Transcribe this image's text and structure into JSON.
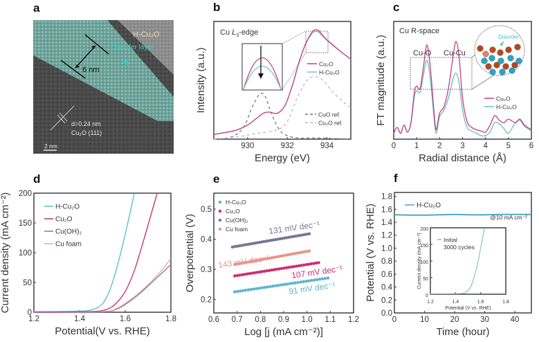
{
  "figure": {
    "panels": [
      "a",
      "b",
      "c",
      "d",
      "e",
      "f"
    ]
  },
  "panel_a": {
    "label": "a",
    "title": "H-Cu₂O",
    "layer_label": "Disorder layer",
    "thickness_label": "6 nm",
    "lattice_label": "d=0.24 nm",
    "plane_label": "Cu₂O (111)",
    "scalebar_label": "2 nm",
    "colors": {
      "layer": "#5fb3a8",
      "title": "#e9d9a0",
      "layer_text": "#3cc9c0"
    }
  },
  "chart_data": [
    {
      "id": "b",
      "type": "line",
      "panel_label": "b",
      "title": "Cu L3-edge",
      "title_parts": [
        "Cu ",
        "L",
        "3",
        "-edge"
      ],
      "xlabel": "Energy (eV)",
      "ylabel": "Intensity (a.u.)",
      "xlim": [
        928.3,
        935.2
      ],
      "ylim": [
        0,
        1.0
      ],
      "xticks": [
        930,
        932,
        934
      ],
      "series": [
        {
          "name": "Cu₂O",
          "color": "#c2417a",
          "style": "solid",
          "x": [
            928.3,
            929.0,
            929.5,
            930.0,
            930.4,
            930.8,
            931.1,
            931.5,
            931.9,
            932.3,
            932.6,
            932.9,
            933.1,
            933.3,
            933.45,
            933.6,
            933.9,
            934.3,
            934.8,
            935.2
          ],
          "y": [
            0.04,
            0.06,
            0.08,
            0.12,
            0.17,
            0.22,
            0.23,
            0.22,
            0.29,
            0.48,
            0.66,
            0.8,
            0.87,
            0.92,
            0.93,
            0.92,
            0.86,
            0.8,
            0.73,
            0.68
          ]
        },
        {
          "name": "H-Cu₂O",
          "color": "#7fbfc6",
          "style": "solid",
          "x": [
            928.3,
            929.0,
            929.5,
            930.0,
            930.4,
            930.8,
            931.1,
            931.5,
            931.9,
            932.3,
            932.6,
            932.9,
            933.1,
            933.3,
            933.45,
            933.6,
            933.9,
            934.3,
            934.8,
            935.2
          ],
          "y": [
            0.04,
            0.06,
            0.08,
            0.12,
            0.17,
            0.22,
            0.23,
            0.22,
            0.29,
            0.48,
            0.66,
            0.8,
            0.86,
            0.905,
            0.915,
            0.905,
            0.855,
            0.795,
            0.73,
            0.68
          ]
        },
        {
          "name": "CuO ref.",
          "color": "#777777",
          "style": "dashed",
          "x": [
            928.3,
            929.2,
            929.8,
            930.2,
            930.5,
            930.7,
            930.9,
            931.2,
            931.6,
            932.0,
            932.6,
            933.5,
            935.2
          ],
          "y": [
            0.0,
            0.02,
            0.1,
            0.26,
            0.36,
            0.39,
            0.36,
            0.22,
            0.08,
            0.03,
            0.01,
            0.01,
            0.0
          ]
        },
        {
          "name": "Cu₂O ref.",
          "color": "#bbbbbb",
          "style": "dashed",
          "x": [
            928.3,
            929.5,
            930.5,
            931.5,
            932.0,
            932.5,
            933.0,
            933.4,
            933.8,
            934.3,
            934.8,
            935.2
          ],
          "y": [
            0.0,
            0.02,
            0.05,
            0.08,
            0.15,
            0.35,
            0.5,
            0.53,
            0.5,
            0.4,
            0.32,
            0.27
          ]
        }
      ],
      "inset": {
        "description": "zoom on peak",
        "arrow": "down"
      },
      "legend_position": "right"
    },
    {
      "id": "c",
      "type": "line",
      "panel_label": "c",
      "title": "Cu R-space",
      "xlabel": "Radial distance (Å)",
      "ylabel": "FT magnitude (a.u.)",
      "xlim": [
        0,
        6
      ],
      "ylim": [
        0,
        1.0
      ],
      "xticks": [
        0,
        1,
        2,
        3,
        4,
        5,
        6
      ],
      "annotations": [
        "Cu-O",
        "Cu-Cu",
        "Disorder"
      ],
      "series": [
        {
          "name": "Cu₂O",
          "color": "#c2417a",
          "x": [
            0,
            0.15,
            0.3,
            0.45,
            0.6,
            0.75,
            0.9,
            1.0,
            1.15,
            1.3,
            1.45,
            1.6,
            1.75,
            1.85,
            2.0,
            2.2,
            2.4,
            2.6,
            2.72,
            2.85,
            3.0,
            3.2,
            3.4,
            3.6,
            3.8,
            4.0,
            4.2,
            4.4,
            4.6,
            4.8,
            5.0,
            5.3,
            5.5,
            5.7,
            6.0
          ],
          "y": [
            0.05,
            0.1,
            0.05,
            0.12,
            0.06,
            0.14,
            0.4,
            0.45,
            0.43,
            0.62,
            0.8,
            0.6,
            0.25,
            0.08,
            0.22,
            0.28,
            0.45,
            0.72,
            0.83,
            0.7,
            0.35,
            0.15,
            0.1,
            0.08,
            0.07,
            0.06,
            0.12,
            0.2,
            0.16,
            0.14,
            0.17,
            0.14,
            0.17,
            0.12,
            0.08
          ]
        },
        {
          "name": "H-Cu₂O",
          "color": "#6fb7c4",
          "x": [
            0,
            0.15,
            0.3,
            0.45,
            0.6,
            0.75,
            0.9,
            1.0,
            1.15,
            1.3,
            1.45,
            1.6,
            1.75,
            1.85,
            2.0,
            2.2,
            2.4,
            2.6,
            2.72,
            2.85,
            3.0,
            3.2,
            3.4,
            3.6,
            3.8,
            4.0,
            4.2,
            4.4,
            4.6,
            4.8,
            5.0,
            5.3,
            5.5,
            5.7,
            6.0
          ],
          "y": [
            0.05,
            0.1,
            0.05,
            0.12,
            0.06,
            0.13,
            0.36,
            0.41,
            0.4,
            0.55,
            0.67,
            0.5,
            0.2,
            0.05,
            0.19,
            0.25,
            0.36,
            0.52,
            0.56,
            0.48,
            0.25,
            0.1,
            0.07,
            0.05,
            0.03,
            0.03,
            0.06,
            0.14,
            0.13,
            0.09,
            0.05,
            0.14,
            0.16,
            0.11,
            0.07
          ]
        }
      ],
      "legend_position": "right"
    },
    {
      "id": "d",
      "type": "line",
      "panel_label": "d",
      "xlabel": "Potential(V vs. RHE)",
      "ylabel": "Current density (mA cm⁻²)",
      "xlim": [
        1.2,
        1.8
      ],
      "ylim": [
        0,
        200
      ],
      "xticks": [
        1.2,
        1.4,
        1.6,
        1.8
      ],
      "yticks": [
        0,
        50,
        100,
        150,
        200
      ],
      "series": [
        {
          "name": "H-Cu₂O",
          "color": "#4fc0b8",
          "x": [
            1.2,
            1.4,
            1.46,
            1.5,
            1.53,
            1.56,
            1.59,
            1.62,
            1.64
          ],
          "y": [
            1,
            2,
            5,
            14,
            35,
            70,
            115,
            165,
            200
          ]
        },
        {
          "name": "Cu₂O",
          "color": "#c8286a",
          "x": [
            1.2,
            1.45,
            1.52,
            1.56,
            1.6,
            1.64,
            1.68,
            1.71,
            1.74
          ],
          "y": [
            0,
            1,
            5,
            15,
            35,
            70,
            120,
            160,
            200
          ]
        },
        {
          "name": "Cu(OH)₂",
          "color": "#8a7a80",
          "x": [
            1.2,
            1.5,
            1.56,
            1.6,
            1.65,
            1.7,
            1.75,
            1.8
          ],
          "y": [
            0,
            1,
            5,
            13,
            27,
            44,
            62,
            80
          ]
        },
        {
          "name": "Cu foam",
          "color": "#e2a2b0",
          "x": [
            1.2,
            1.5,
            1.56,
            1.6,
            1.65,
            1.7,
            1.75,
            1.8
          ],
          "y": [
            0,
            1,
            6,
            15,
            29,
            46,
            66,
            90
          ]
        }
      ],
      "legend_position": "top-left"
    },
    {
      "id": "e",
      "type": "scatter",
      "panel_label": "e",
      "xlabel": "Log [j (mA cm⁻²)]",
      "ylabel": "Overpotential (V)",
      "xlim": [
        0.6,
        1.2
      ],
      "ylim": [
        0.155,
        0.553
      ],
      "xticks": [
        0.6,
        0.7,
        0.8,
        0.9,
        1.0,
        1.1,
        1.2
      ],
      "yticks": [
        0.2,
        0.3,
        0.4,
        0.5
      ],
      "series": [
        {
          "name": "H-Cu₂O",
          "color": "#5ab4cf",
          "x_start": 0.69,
          "x_end": 1.09,
          "y_start": 0.225,
          "y_end": 0.271,
          "tafel": "91 mV dec⁻¹"
        },
        {
          "name": "Cu₂O",
          "color": "#d12a6f",
          "x_start": 0.69,
          "x_end": 1.05,
          "y_start": 0.278,
          "y_end": 0.322,
          "tafel": "107 mV dec⁻¹"
        },
        {
          "name": "Cu(OH)₂",
          "color": "#7a7396",
          "x_start": 0.68,
          "x_end": 1.01,
          "y_start": 0.374,
          "y_end": 0.418,
          "tafel": "131 mV dec⁻¹"
        },
        {
          "name": "Cu foam",
          "color": "#e8958a",
          "x_start": 0.69,
          "x_end": 1.01,
          "y_start": 0.316,
          "y_end": 0.361,
          "tafel": "143 mV dec⁻¹"
        }
      ],
      "legend_position": "top-left"
    },
    {
      "id": "f",
      "type": "line",
      "panel_label": "f",
      "xlabel": "Time (hour)",
      "ylabel": "Potential (V vs. RHE)",
      "xlim": [
        0,
        45.5
      ],
      "ylim": [
        0,
        1.86
      ],
      "xticks": [
        0,
        10,
        20,
        30,
        40
      ],
      "yticks": [
        0.0,
        0.2,
        0.4,
        0.6,
        0.8,
        1.0,
        1.2,
        1.4,
        1.6,
        1.8
      ],
      "annotation": "@10 mA cm⁻²",
      "series": [
        {
          "name": "H-Cu₂O",
          "color": "#4fa9c4",
          "x": [
            0,
            5,
            10,
            15,
            20,
            25,
            30,
            35,
            40,
            45.5
          ],
          "y": [
            1.515,
            1.51,
            1.51,
            1.515,
            1.52,
            1.515,
            1.515,
            1.52,
            1.52,
            1.52
          ]
        }
      ],
      "legend_position": "top-left",
      "inset": {
        "xlabel": "Potential (V vs. RHE)",
        "ylabel": "Current density (mA cm⁻²)",
        "xlim": [
          1.2,
          1.8
        ],
        "ylim": [
          0,
          200
        ],
        "xticks": [
          1.2,
          1.4,
          1.6,
          1.8
        ],
        "yticks": [
          0,
          50,
          100,
          150,
          200
        ],
        "series": [
          {
            "name": "Initial",
            "color": "#7fbfb0",
            "style": "solid",
            "x": [
              1.2,
              1.44,
              1.48,
              1.52,
              1.55,
              1.58,
              1.61,
              1.63
            ],
            "y": [
              1,
              2,
              6,
              22,
              55,
              100,
              160,
              200
            ]
          },
          {
            "name": "3000 cycles",
            "color": "#8fd0c6",
            "style": "dotted",
            "x": [
              1.2,
              1.44,
              1.48,
              1.52,
              1.55,
              1.58,
              1.61,
              1.635
            ],
            "y": [
              1,
              2,
              5,
              20,
              52,
              96,
              155,
              200
            ]
          }
        ],
        "legend_position": "top-left"
      }
    }
  ]
}
